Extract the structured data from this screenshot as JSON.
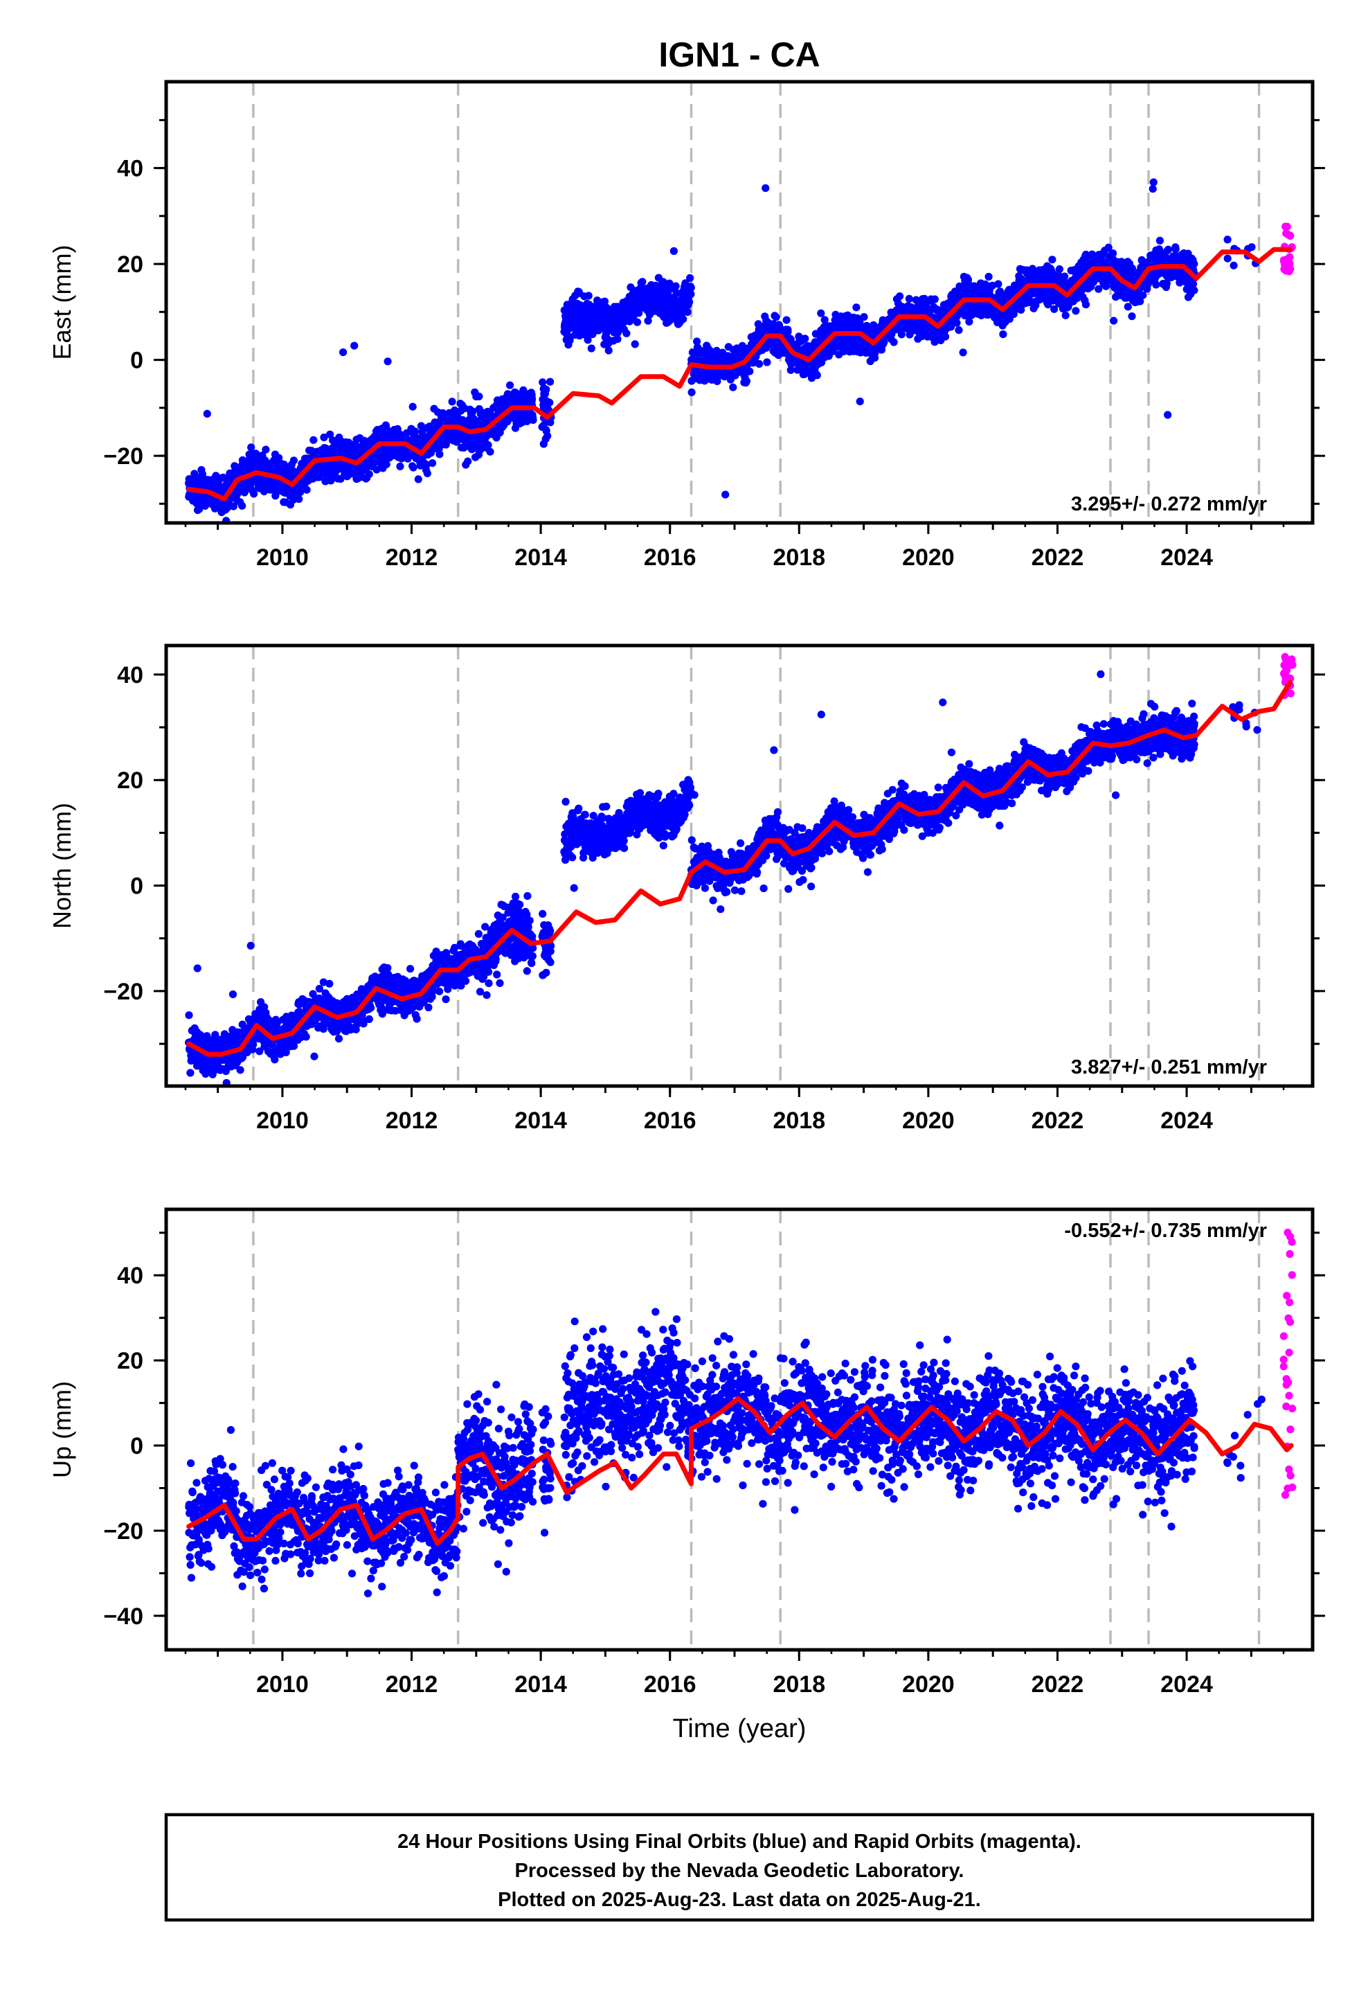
{
  "chart_data": {
    "type": "scatter",
    "title": "IGN1 - CA",
    "xlabel": "Time (year)",
    "xlim": [
      2008.2,
      2025.95
    ],
    "x_ticks": [
      2010,
      2012,
      2014,
      2016,
      2018,
      2020,
      2022,
      2024
    ],
    "x_tick_labels": [
      "2010",
      "2012",
      "2014",
      "2016",
      "2018",
      "2020",
      "2022",
      "2024"
    ],
    "event_lines_year": [
      2009.55,
      2012.72,
      2016.33,
      2017.71,
      2022.82,
      2023.41,
      2025.12
    ],
    "grid": false,
    "legend": "none",
    "colors": {
      "final_orbits": "#0000ff",
      "rapid_orbits": "#ff00ff",
      "model": "#ff0000",
      "event_line": "#bbbbbb"
    },
    "series": [
      {
        "name": "East",
        "ylabel": "East (mm)",
        "ylim": [
          -34,
          58
        ],
        "y_ticks": [
          -20,
          0,
          20,
          40
        ],
        "y_tick_labels": [
          "−20",
          "0",
          "20",
          "40"
        ],
        "rate_text": "3.295+/- 0.272 mm/yr",
        "rate_position": "bottom-right",
        "model": {
          "x": [
            2008.55,
            2008.85,
            2009.1,
            2009.3,
            2009.6,
            2009.95,
            2010.15,
            2010.5,
            2010.9,
            2011.15,
            2011.5,
            2011.9,
            2012.15,
            2012.5,
            2012.72,
            2012.9,
            2013.15,
            2013.55,
            2013.9,
            2014.1,
            2014.5,
            2014.9,
            2015.1,
            2015.55,
            2015.9,
            2016.15,
            2016.33,
            2016.6,
            2016.95,
            2017.15,
            2017.5,
            2017.71,
            2017.9,
            2018.15,
            2018.55,
            2018.95,
            2019.15,
            2019.55,
            2019.95,
            2020.15,
            2020.55,
            2020.95,
            2021.15,
            2021.55,
            2021.95,
            2022.15,
            2022.55,
            2022.82,
            2023.0,
            2023.2,
            2023.41,
            2023.6,
            2023.95,
            2024.15,
            2024.55,
            2024.9,
            2025.12,
            2025.35,
            2025.6
          ],
          "y": [
            -27,
            -27.5,
            -29,
            -25,
            -23.5,
            -24.5,
            -26,
            -21,
            -20.5,
            -21.5,
            -17.5,
            -17.5,
            -19.5,
            -14,
            -14,
            -15,
            -14.5,
            -10,
            -10,
            -12,
            -7,
            -7.5,
            -9,
            -3.5,
            -3.5,
            -5.5,
            -1,
            -1.5,
            -1.5,
            -0.5,
            5,
            5,
            1.5,
            0,
            5.5,
            5.5,
            3.5,
            9,
            9,
            7,
            12.5,
            12.5,
            10.5,
            15.5,
            15.5,
            13.5,
            19,
            19,
            16.5,
            15,
            19,
            19.5,
            19.5,
            17,
            22.5,
            22.5,
            20.5,
            23,
            23
          ]
        },
        "rapid": {
          "x_range": [
            2025.5,
            2025.64
          ],
          "y_range": [
            18,
            28
          ]
        }
      },
      {
        "name": "North",
        "ylabel": "North (mm)",
        "ylim": [
          -38,
          45.5
        ],
        "y_ticks": [
          -20,
          0,
          20,
          40
        ],
        "y_tick_labels": [
          "−20",
          "0",
          "20",
          "40"
        ],
        "rate_text": "3.827+/- 0.251 mm/yr",
        "rate_position": "bottom-right",
        "model": {
          "x": [
            2008.55,
            2008.85,
            2009.05,
            2009.35,
            2009.6,
            2009.85,
            2010.15,
            2010.5,
            2010.85,
            2011.15,
            2011.45,
            2011.85,
            2012.15,
            2012.45,
            2012.72,
            2012.9,
            2013.15,
            2013.55,
            2013.85,
            2014.15,
            2014.55,
            2014.85,
            2015.15,
            2015.55,
            2015.85,
            2016.15,
            2016.33,
            2016.55,
            2016.85,
            2017.15,
            2017.5,
            2017.71,
            2017.9,
            2018.15,
            2018.55,
            2018.85,
            2019.15,
            2019.55,
            2019.85,
            2020.15,
            2020.55,
            2020.85,
            2021.15,
            2021.55,
            2021.85,
            2022.15,
            2022.55,
            2022.82,
            2023.1,
            2023.41,
            2023.65,
            2023.95,
            2024.15,
            2024.55,
            2024.85,
            2025.12,
            2025.35,
            2025.6
          ],
          "y": [
            -30,
            -32,
            -32,
            -31,
            -26.5,
            -29,
            -28,
            -23,
            -25,
            -24,
            -19.5,
            -21.5,
            -20.5,
            -16,
            -16,
            -14,
            -13.5,
            -8.5,
            -11,
            -10.5,
            -5,
            -7,
            -6.5,
            -1,
            -3.5,
            -2.5,
            2.5,
            4.5,
            2.5,
            3,
            8.5,
            8.5,
            6,
            7,
            12,
            9.5,
            10,
            15.5,
            13.5,
            14,
            19.5,
            17,
            18,
            23.5,
            21,
            21.5,
            27,
            26.5,
            27,
            28.5,
            29.5,
            28,
            28.5,
            34,
            31.5,
            33,
            33.5,
            38.5
          ]
        },
        "rapid": {
          "x_range": [
            2025.5,
            2025.64
          ],
          "y_range": [
            36,
            44
          ]
        }
      },
      {
        "name": "Up",
        "ylabel": "Up (mm)",
        "ylim": [
          -48,
          55.5
        ],
        "y_ticks": [
          -40,
          -20,
          0,
          20,
          40
        ],
        "y_tick_labels": [
          "−40",
          "−20",
          "0",
          "20",
          "40"
        ],
        "rate_text": "-0.552+/- 0.735 mm/yr",
        "rate_position": "top-right",
        "model": {
          "x": [
            2008.55,
            2008.8,
            2009.1,
            2009.4,
            2009.6,
            2009.9,
            2010.15,
            2010.4,
            2010.6,
            2010.9,
            2011.15,
            2011.4,
            2011.6,
            2011.9,
            2012.15,
            2012.4,
            2012.6,
            2012.719,
            2012.721,
            2012.9,
            2013.1,
            2013.4,
            2013.6,
            2013.9,
            2014.1,
            2014.4,
            2014.6,
            2014.9,
            2015.15,
            2015.4,
            2015.6,
            2015.9,
            2016.1,
            2016.329,
            2016.331,
            2016.6,
            2016.8,
            2017.05,
            2017.3,
            2017.55,
            2017.8,
            2018.05,
            2018.3,
            2018.55,
            2018.8,
            2019.05,
            2019.3,
            2019.55,
            2019.8,
            2020.05,
            2020.3,
            2020.55,
            2020.8,
            2021.05,
            2021.3,
            2021.55,
            2021.8,
            2022.05,
            2022.3,
            2022.55,
            2022.8,
            2023.05,
            2023.3,
            2023.55,
            2023.8,
            2024.05,
            2024.3,
            2024.55,
            2024.8,
            2025.05,
            2025.3,
            2025.55,
            2025.62
          ],
          "y": [
            -19,
            -17,
            -14,
            -22,
            -22,
            -17,
            -15,
            -22,
            -20,
            -15,
            -14,
            -22,
            -20,
            -16,
            -15,
            -23,
            -20,
            -17,
            -5,
            -3,
            -2,
            -10,
            -8,
            -4,
            -2,
            -11,
            -9,
            -6,
            -4,
            -10,
            -7,
            -2,
            -2,
            -9,
            4,
            6,
            8,
            11,
            8,
            3,
            7,
            10,
            5,
            2,
            6,
            9,
            4,
            1,
            5,
            9,
            6,
            1,
            4,
            8,
            6,
            0,
            3,
            8,
            5,
            -1,
            3,
            6,
            3,
            -2,
            2,
            6,
            3,
            -2,
            0,
            5,
            4,
            -1,
            0
          ]
        },
        "rapid": {
          "x_range": [
            2025.5,
            2025.64
          ],
          "y_range": [
            -12,
            53
          ]
        }
      }
    ]
  },
  "footer": {
    "line1": "24 Hour Positions Using Final Orbits (blue) and Rapid Orbits (magenta).",
    "line2": "Processed by the Nevada Geodetic Laboratory.",
    "line3": "Plotted on 2025-Aug-23. Last data on 2025-Aug-21."
  }
}
